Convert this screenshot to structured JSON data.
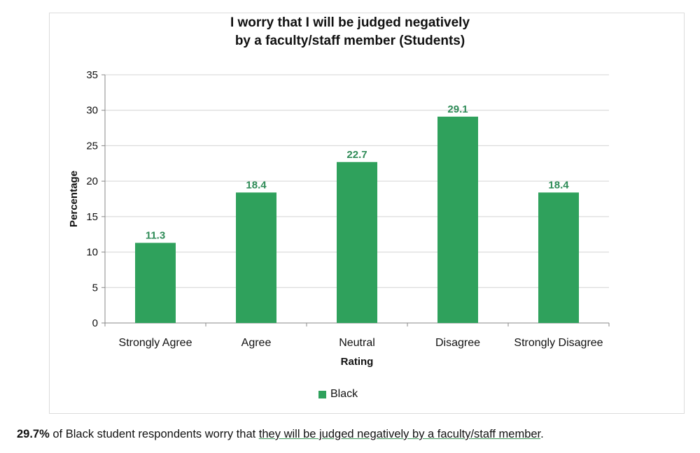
{
  "chart_data": {
    "type": "bar",
    "title_lines": [
      "I worry that I will be judged negatively",
      "by a faculty/staff member (Students)"
    ],
    "categories": [
      "Strongly Agree",
      "Agree",
      "Neutral",
      "Disagree",
      "Strongly Disagree"
    ],
    "series": [
      {
        "name": "Black",
        "values": [
          11.3,
          18.4,
          22.7,
          29.1,
          18.4
        ]
      }
    ],
    "data_labels": [
      "11.3",
      "18.4",
      "22.7",
      "29.1",
      "18.4"
    ],
    "xlabel": "Rating",
    "ylabel": "Percentage",
    "ylim": [
      0,
      35
    ],
    "yticks": [
      0,
      5,
      10,
      15,
      20,
      25,
      30,
      35
    ],
    "grid": true,
    "legend_position": "bottom",
    "colors": {
      "bar": "#2fa15c",
      "data_label": "#2e8b57"
    }
  },
  "caption": {
    "bold": "29.7%",
    "plain": " of Black student respondents worry that ",
    "underlined": "they will be judged negatively by a faculty/staff member",
    "end": "."
  }
}
